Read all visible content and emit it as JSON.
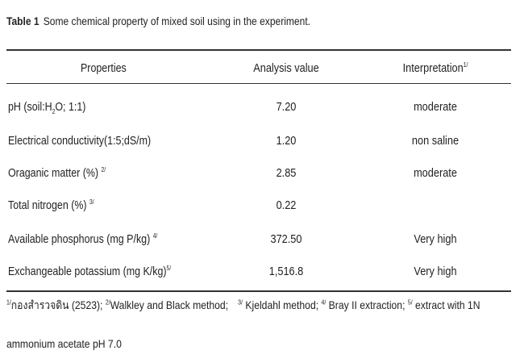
{
  "caption": {
    "label": "Table 1",
    "text": "Some chemical property of mixed soil using in the experiment."
  },
  "table": {
    "headers": {
      "properties": "Properties",
      "analysis_value": "Analysis value",
      "interpretation": "Interpretation",
      "interpretation_note": "1/"
    },
    "rows": [
      {
        "property_prefix": "pH (soil:H",
        "property_sub": "2",
        "property_suffix": "O; 1:1)",
        "property_note": "",
        "value": "7.20",
        "interpretation": "moderate"
      },
      {
        "property": "Electrical conductivity(1:5;dS/m)",
        "property_note": "",
        "value": "1.20",
        "interpretation": "non saline"
      },
      {
        "property": "Oraganic matter (%)",
        "property_note": "2/",
        "value": "2.85",
        "interpretation": "moderate"
      },
      {
        "property": "Total nitrogen (%)",
        "property_note": "3/",
        "value": "0.22",
        "interpretation": ""
      },
      {
        "property": "Available phosphorus (mg P/kg)",
        "property_note": "4/",
        "value": "372.50",
        "interpretation": "Very high"
      },
      {
        "property": "Exchangeable potassium (mg K/kg)",
        "property_note": "5/",
        "value": "1,516.8",
        "interpretation": "Very high"
      }
    ]
  },
  "footnotes": {
    "n1_mark": "1/",
    "n1_text": "กองสำรวจดิน (2523);",
    "n2_mark": "2/",
    "n2_text": "Walkley and Black method;",
    "n3_mark": "3/",
    "n3_text": "Kjeldahl method;",
    "n4_mark": "4/",
    "n4_text": "Bray II extraction;",
    "n5_mark": "5/",
    "n5_text": "extract with 1N",
    "continuation": "ammonium acetate pH 7.0"
  }
}
